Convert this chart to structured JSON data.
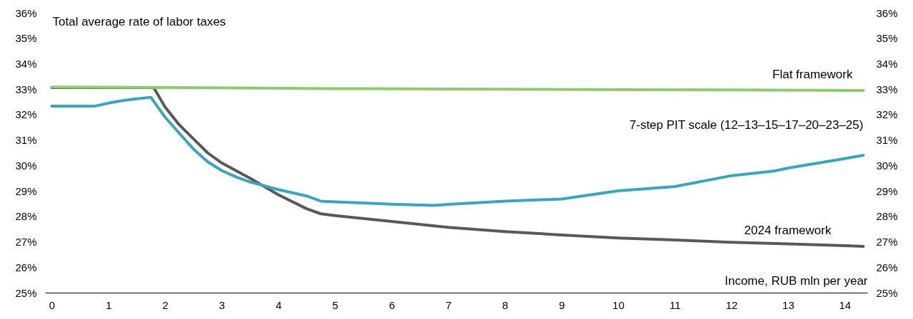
{
  "chart_data": {
    "type": "line",
    "xlabel": "Income, RUB mln per year",
    "ylabel": "Total average rate of labor taxes",
    "xlim": [
      -0.12,
      14.4
    ],
    "xticks": [
      0,
      1,
      2,
      3,
      4,
      5,
      6,
      7,
      8,
      9,
      10,
      11,
      12,
      13,
      14
    ],
    "ylim": [
      25,
      36
    ],
    "yticks": [
      {
        "value": 25,
        "label": "25%"
      },
      {
        "value": 26,
        "label": "26%"
      },
      {
        "value": 27,
        "label": "27%"
      },
      {
        "value": 28,
        "label": "28%"
      },
      {
        "value": 29,
        "label": "29%"
      },
      {
        "value": 30,
        "label": "30%"
      },
      {
        "value": 31,
        "label": "31%"
      },
      {
        "value": 32,
        "label": "32%"
      },
      {
        "value": 33,
        "label": "33%"
      },
      {
        "value": 34,
        "label": "34%"
      },
      {
        "value": 35,
        "label": "35%"
      },
      {
        "value": 36,
        "label": "36%"
      }
    ],
    "y2lim": [
      25,
      36
    ],
    "y2ticks": [
      {
        "value": 25,
        "label": "25%"
      },
      {
        "value": 26,
        "label": "26%"
      },
      {
        "value": 27,
        "label": "27%"
      },
      {
        "value": 28,
        "label": "28%"
      },
      {
        "value": 29,
        "label": "29%"
      },
      {
        "value": 30,
        "label": "30%"
      },
      {
        "value": 31,
        "label": "31%"
      },
      {
        "value": 32,
        "label": "32%"
      },
      {
        "value": 33,
        "label": "33%"
      },
      {
        "value": 34,
        "label": "34%"
      },
      {
        "value": 35,
        "label": "35%"
      },
      {
        "value": 36,
        "label": "36%"
      }
    ],
    "grid": false,
    "line_style": "solid",
    "marker": "none",
    "series": [
      {
        "name": "Flat framework",
        "color": "#8fcb6e",
        "x": [
          0,
          1.75,
          5,
          10,
          14.33
        ],
        "values": [
          33.08,
          33.07,
          33.02,
          32.98,
          32.95
        ]
      },
      {
        "name": "7-step PIT scale (12–13–15–17–20–23–25)",
        "color": "#3aa5bd",
        "x": [
          0,
          0.75,
          1,
          1.25,
          1.5,
          1.75,
          2,
          2.25,
          2.5,
          2.75,
          3,
          3.25,
          3.5,
          4,
          4.5,
          4.75,
          5,
          6,
          6.75,
          7,
          8,
          9,
          10,
          11,
          12,
          12.75,
          13,
          14,
          14.33
        ],
        "values": [
          32.33,
          32.33,
          32.45,
          32.55,
          32.62,
          32.68,
          31.9,
          31.27,
          30.65,
          30.15,
          29.8,
          29.55,
          29.35,
          29.05,
          28.8,
          28.6,
          28.57,
          28.48,
          28.43,
          28.47,
          28.6,
          28.68,
          29.0,
          29.17,
          29.6,
          29.78,
          29.9,
          30.27,
          30.4
        ]
      },
      {
        "name": "2024 framework",
        "color": "#595959",
        "x": [
          0,
          1.8,
          2,
          2.25,
          2.5,
          2.75,
          3,
          3.5,
          4,
          4.5,
          4.75,
          5,
          6,
          7,
          8,
          9,
          10,
          11,
          12,
          13,
          14,
          14.33
        ],
        "values": [
          33.06,
          33.06,
          32.3,
          31.6,
          31.05,
          30.5,
          30.1,
          29.5,
          28.85,
          28.3,
          28.1,
          28.03,
          27.8,
          27.57,
          27.4,
          27.27,
          27.15,
          27.07,
          26.98,
          26.92,
          26.85,
          26.82
        ]
      }
    ]
  }
}
